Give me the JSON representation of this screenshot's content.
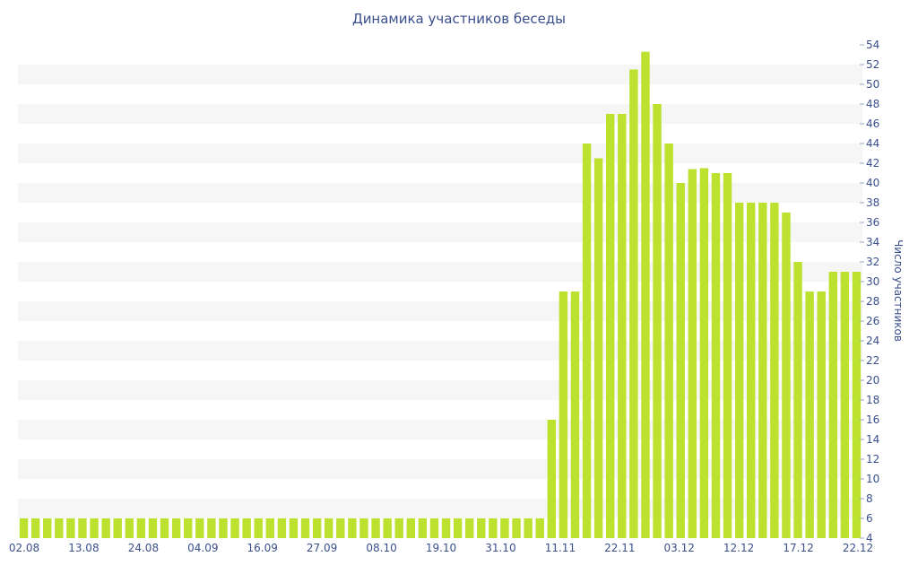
{
  "chart_data": {
    "type": "bar",
    "title": "Динамика участников беседы",
    "xlabel": "",
    "ylabel": "Число участников",
    "ylim": [
      4,
      54
    ],
    "ystep": 2,
    "y_axis_side": "right",
    "grid": "alternating horizontal bands",
    "bar_color": "#bce12f",
    "band_color": "#f6f6f6",
    "text_color": "#3a4f8c",
    "x_tick_labels": [
      "02.08",
      "13.08",
      "24.08",
      "04.09",
      "16.09",
      "27.09",
      "08.10",
      "19.10",
      "31.10",
      "11.11",
      "22.11",
      "03.12",
      "12.12",
      "17.12",
      "22.12"
    ],
    "values": [
      6,
      6,
      6,
      6,
      6,
      6,
      6,
      6,
      6,
      6,
      6,
      6,
      6,
      6,
      6,
      6,
      6,
      6,
      6,
      6,
      6,
      6,
      6,
      6,
      6,
      6,
      6,
      6,
      6,
      6,
      6,
      6,
      6,
      6,
      6,
      6,
      6,
      6,
      6,
      6,
      6,
      6,
      6,
      6,
      6,
      16,
      29,
      29,
      44,
      42.5,
      47,
      47,
      51.5,
      53.3,
      48,
      44,
      40,
      41.4,
      41.5,
      41,
      41,
      38,
      38,
      38,
      38,
      37,
      32,
      29,
      29,
      31,
      31,
      31
    ]
  }
}
